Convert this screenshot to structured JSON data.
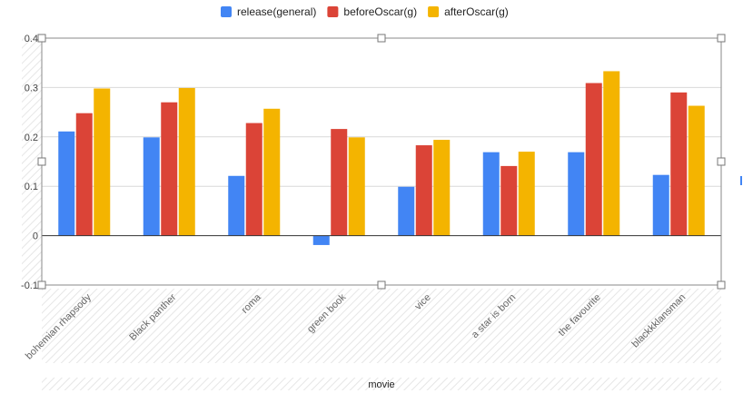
{
  "chart_data": {
    "type": "bar",
    "categories": [
      "bohemian rhapsody",
      "Black panther",
      "roma",
      "green book",
      "vice",
      "a star is born",
      "the favourite",
      "blackkklansman"
    ],
    "series": [
      {
        "name": "release(general)",
        "color": "#4285F4",
        "values": [
          0.211,
          0.199,
          0.121,
          -0.019,
          0.099,
          0.169,
          0.169,
          0.123
        ]
      },
      {
        "name": "beforeOscar(g)",
        "color": "#DB4437",
        "values": [
          0.248,
          0.27,
          0.228,
          0.216,
          0.183,
          0.141,
          0.309,
          0.29
        ]
      },
      {
        "name": "afterOscar(g)",
        "color": "#F4B400",
        "values": [
          0.298,
          0.299,
          0.257,
          0.199,
          0.194,
          0.17,
          0.333,
          0.263
        ]
      }
    ],
    "yticks": [
      {
        "value": 0.4,
        "label": "0.4"
      },
      {
        "value": 0.3,
        "label": "0.3"
      },
      {
        "value": 0.2,
        "label": "0.2"
      },
      {
        "value": 0.1,
        "label": "0.1"
      },
      {
        "value": 0,
        "label": "0"
      },
      {
        "value": -0.1,
        "label": "-0.1"
      }
    ],
    "ylim": [
      -0.1,
      0.4
    ],
    "xlabel": "movie",
    "ylabel": "",
    "legend_position": "top",
    "grid": true
  }
}
